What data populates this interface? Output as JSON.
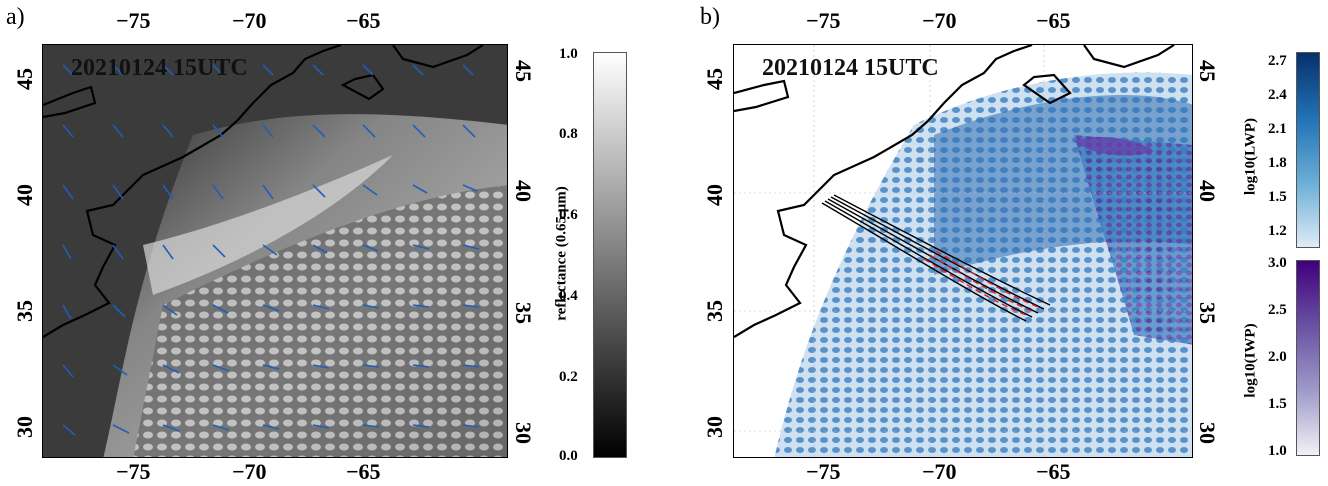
{
  "panel_a": {
    "label": "a)",
    "timestamp": "20210124 15UTC",
    "x_ticks_top": [
      "−75",
      "−70",
      "−65"
    ],
    "x_ticks_bottom": [
      "−75",
      "−70",
      "−65"
    ],
    "y_ticks_left": [
      "45",
      "40",
      "35",
      "30"
    ],
    "y_ticks_right": [
      "45",
      "40",
      "35",
      "30"
    ],
    "colorbar": {
      "label": "reflectance (0.65 μm)",
      "ticks": [
        "1.0",
        "0.8",
        "0.6",
        "0.4",
        "0.2",
        "0.0"
      ],
      "colors": [
        "#ffffff",
        "#000000"
      ]
    }
  },
  "panel_b": {
    "label": "b)",
    "timestamp": "20210124 15UTC",
    "x_ticks_top": [
      "−75",
      "−70",
      "−65"
    ],
    "x_ticks_bottom": [
      "−75",
      "−70",
      "−65"
    ],
    "y_ticks_left": [
      "45",
      "40",
      "35",
      "30"
    ],
    "y_ticks_right": [
      "45",
      "40",
      "35",
      "30"
    ],
    "colorbar_lwp": {
      "label": "log10(LWP)",
      "ticks": [
        "2.7",
        "2.4",
        "2.1",
        "1.8",
        "1.5",
        "1.2"
      ],
      "colors": [
        "#08306b",
        "#deebf7"
      ]
    },
    "colorbar_iwp": {
      "label": "log10(IWP)",
      "ticks": [
        "3.0",
        "2.5",
        "2.0",
        "1.5",
        "1.0"
      ],
      "colors": [
        "#3f007d",
        "#f2f0f7"
      ]
    }
  }
}
